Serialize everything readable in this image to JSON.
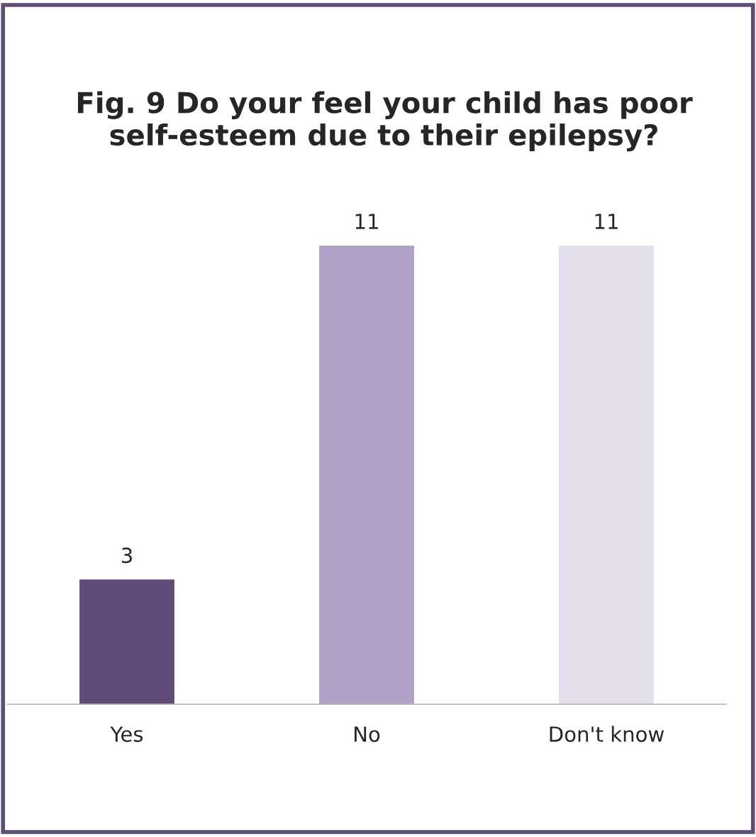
{
  "chart_data": {
    "type": "bar",
    "title": "Fig. 9 Do your feel your child has poor self-esteem due to their epilepsy?",
    "categories": [
      "Yes",
      "No",
      "Don't know"
    ],
    "values": [
      3,
      11,
      11
    ],
    "colors": [
      "#614b79",
      "#b2a2c7",
      "#e4dfec"
    ],
    "data_labels": true,
    "grid": false,
    "legend": false,
    "tick_labels": "x"
  }
}
